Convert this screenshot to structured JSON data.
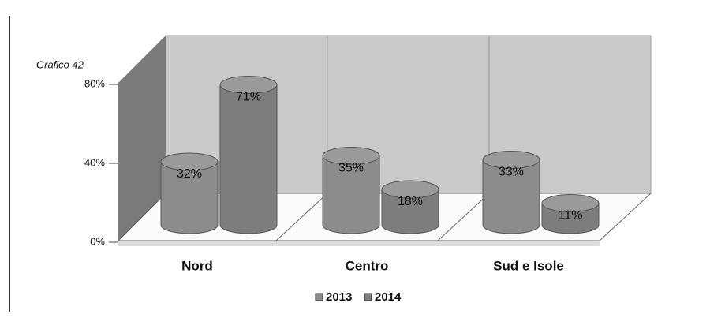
{
  "chart_data": {
    "type": "bar",
    "annotation": "Grafico 42",
    "categories": [
      "Nord",
      "Centro",
      "Sud e Isole"
    ],
    "series": [
      {
        "name": "2013",
        "color": "#8c8c8c",
        "values": [
          32,
          35,
          33
        ],
        "value_labels": [
          "32%",
          "35%",
          "33%"
        ]
      },
      {
        "name": "2014",
        "color": "#7d7d7d",
        "values": [
          71,
          18,
          11
        ],
        "value_labels": [
          "71%",
          "18%",
          "11%"
        ]
      }
    ],
    "ylim": [
      0,
      80
    ],
    "yticks": [
      {
        "value": 0,
        "label": "0%"
      },
      {
        "value": 40,
        "label": "40%"
      },
      {
        "value": 80,
        "label": "80%"
      }
    ],
    "grid": true
  }
}
